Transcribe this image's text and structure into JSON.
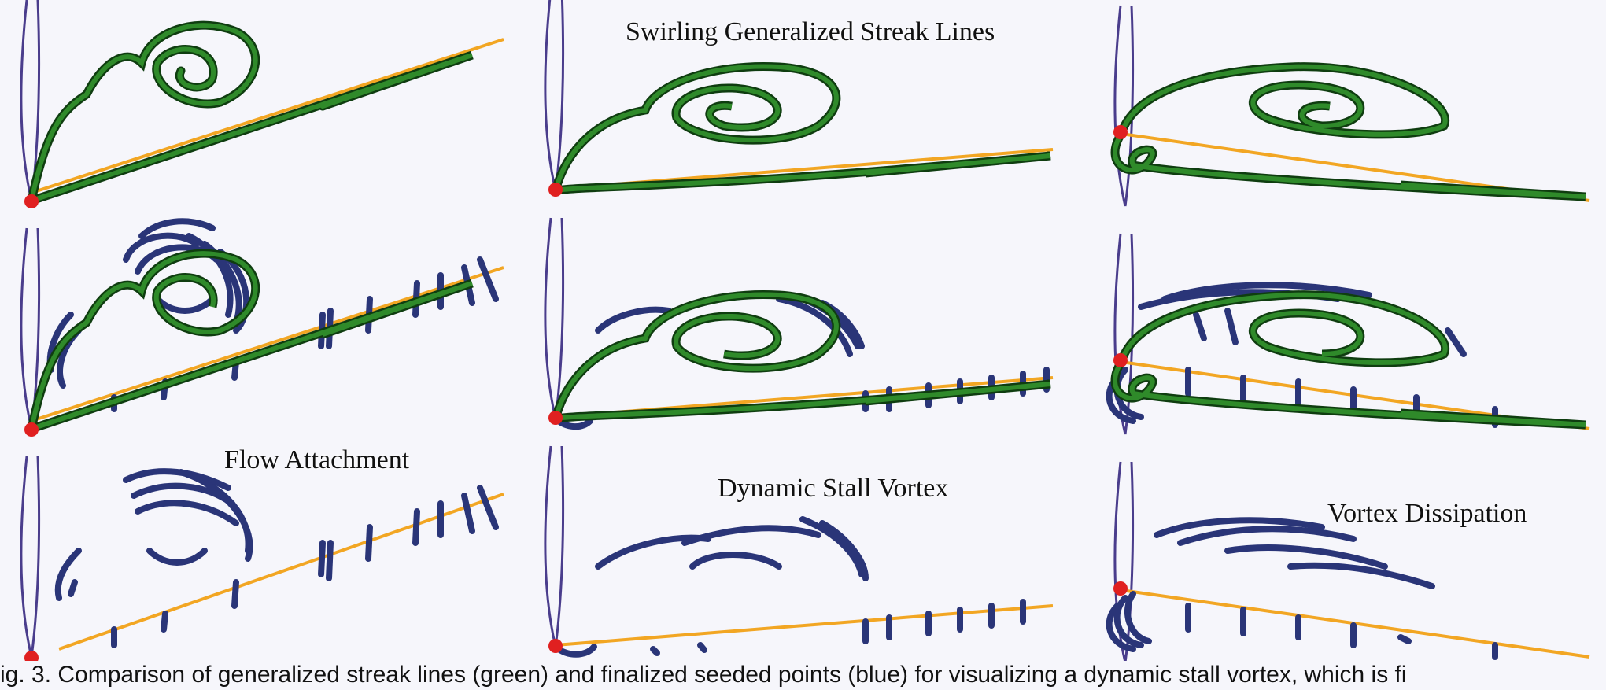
{
  "figure": {
    "labels": {
      "top": "Swirling Generalized Streak Lines",
      "bottom_left": "Flow Attachment",
      "bottom_middle": "Dynamic Stall Vortex",
      "bottom_right": "Vortex Dissipation"
    },
    "caption": "ig. 3. Comparison of generalized streak lines (green) and finalized seeded points (blue) for visualizing a dynamic stall vortex, which is fi",
    "colors": {
      "background": "#f6f6fb",
      "airfoil": "#4a3d8c",
      "streak_line": "#2f8a2a",
      "streak_outline": "#0f3d10",
      "seed_line": "#f2a623",
      "seed_points": "#2a3578",
      "seed_origin": "#e02020"
    }
  }
}
